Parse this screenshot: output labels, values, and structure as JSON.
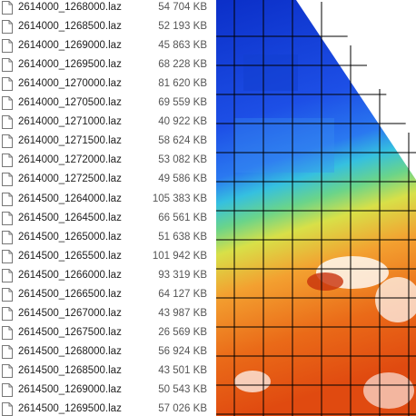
{
  "files": [
    {
      "name": "2614000_1268000.laz",
      "size": "54 704 KB"
    },
    {
      "name": "2614000_1268500.laz",
      "size": "52 193 KB"
    },
    {
      "name": "2614000_1269000.laz",
      "size": "45 863 KB"
    },
    {
      "name": "2614000_1269500.laz",
      "size": "68 228 KB"
    },
    {
      "name": "2614000_1270000.laz",
      "size": "81 620 KB"
    },
    {
      "name": "2614000_1270500.laz",
      "size": "69 559 KB"
    },
    {
      "name": "2614000_1271000.laz",
      "size": "40 922 KB"
    },
    {
      "name": "2614000_1271500.laz",
      "size": "58 624 KB"
    },
    {
      "name": "2614000_1272000.laz",
      "size": "53 082 KB"
    },
    {
      "name": "2614000_1272500.laz",
      "size": "49 586 KB"
    },
    {
      "name": "2614500_1264000.laz",
      "size": "105 383 KB"
    },
    {
      "name": "2614500_1264500.laz",
      "size": "66 561 KB"
    },
    {
      "name": "2614500_1265000.laz",
      "size": "51 638 KB"
    },
    {
      "name": "2614500_1265500.laz",
      "size": "101 942 KB"
    },
    {
      "name": "2614500_1266000.laz",
      "size": "93 319 KB"
    },
    {
      "name": "2614500_1266500.laz",
      "size": "64 127 KB"
    },
    {
      "name": "2614500_1267000.laz",
      "size": "43 987 KB"
    },
    {
      "name": "2614500_1267500.laz",
      "size": "26 569 KB"
    },
    {
      "name": "2614500_1268000.laz",
      "size": "56 924 KB"
    },
    {
      "name": "2614500_1268500.laz",
      "size": "43 501 KB"
    },
    {
      "name": "2614500_1269000.laz",
      "size": "50 543 KB"
    },
    {
      "name": "2614500_1269500.laz",
      "size": "57 026 KB"
    }
  ]
}
